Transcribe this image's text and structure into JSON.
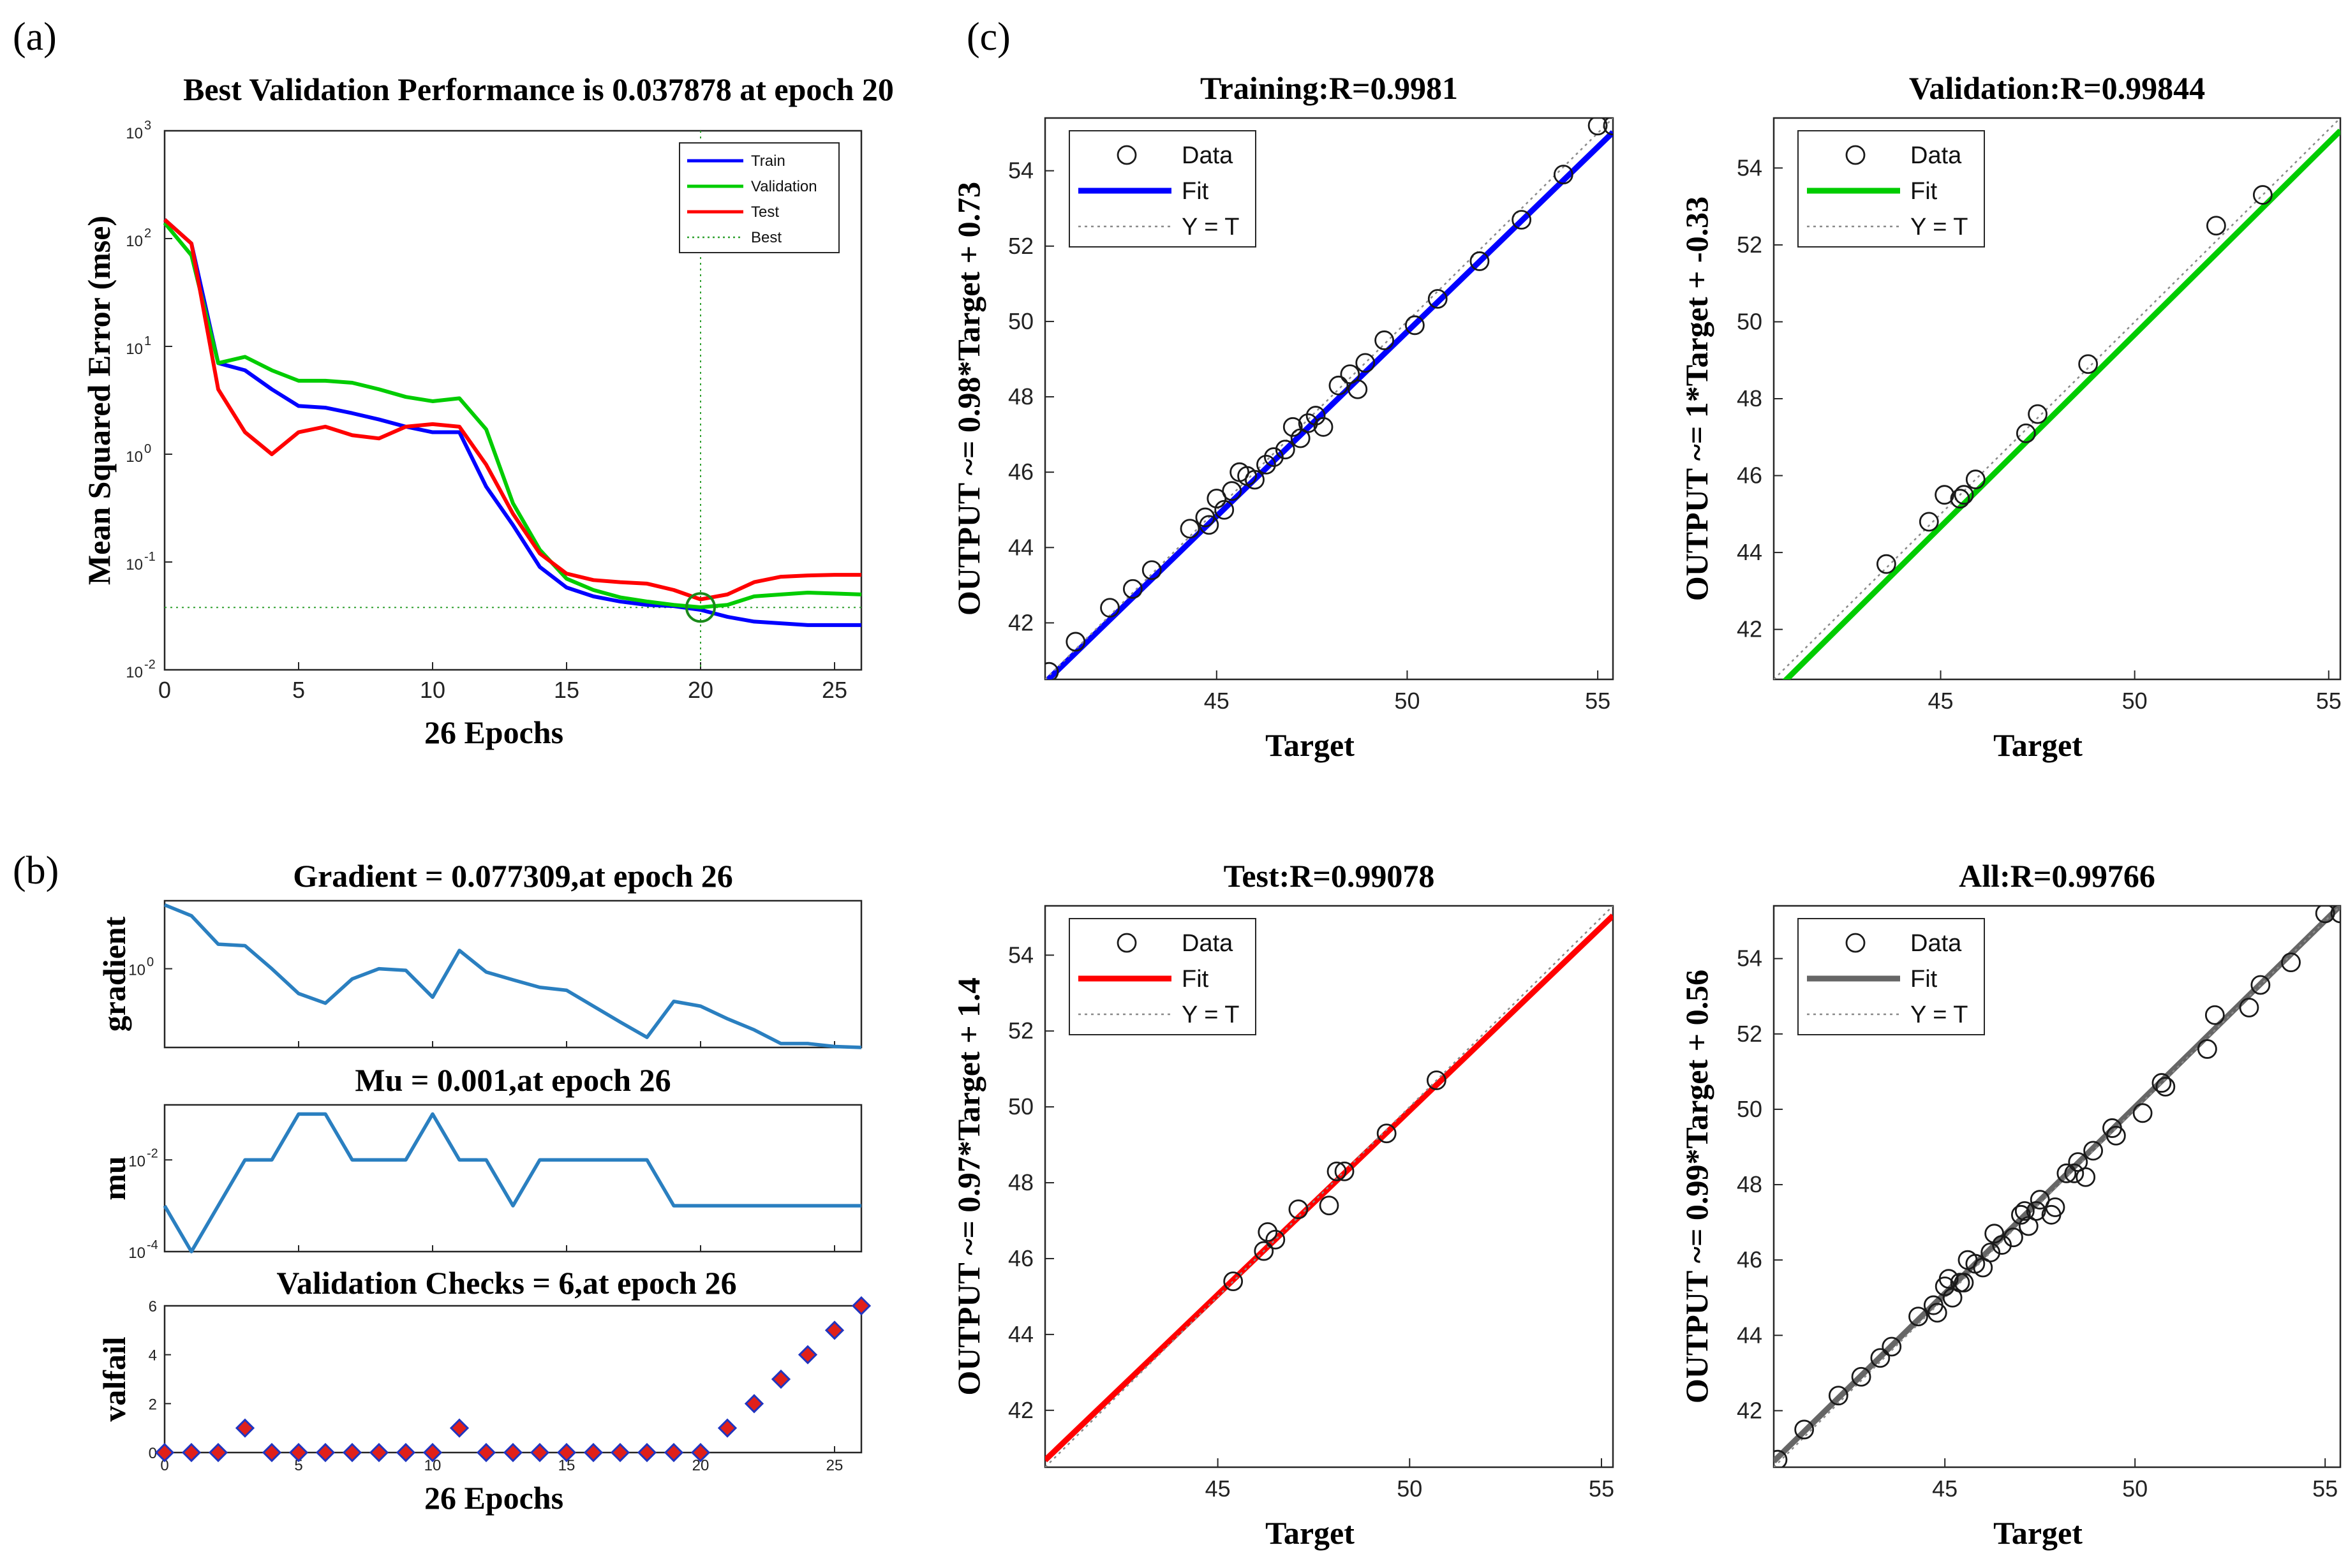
{
  "panels": {
    "a": "(a)",
    "b": "(b)",
    "c": "(c)"
  },
  "colors": {
    "train": "#0000ff",
    "validation": "#00cc00",
    "test": "#ff0000",
    "all": "#666666",
    "curve": "#2a7fc0",
    "marker_fill": "#e0201a",
    "marker_edge": "#2035c0"
  },
  "chart_data": [
    {
      "id": "performance",
      "type": "line",
      "title": "Best Validation Performance is 0.037878 at epoch 20",
      "xlabel": "26 Epochs",
      "ylabel": "Mean Squared Error (mse)",
      "yscale": "log",
      "xlim": [
        0,
        26
      ],
      "ylim_exp": [
        -2,
        3
      ],
      "xticks": [
        0,
        5,
        10,
        15,
        20,
        25
      ],
      "ytick_exponents": [
        -2,
        -1,
        0,
        1,
        2,
        3
      ],
      "ytick_base": "10",
      "best": {
        "epoch": 20,
        "value": 0.037878,
        "label": "Best"
      },
      "x": [
        0,
        1,
        2,
        3,
        4,
        5,
        6,
        7,
        8,
        9,
        10,
        11,
        12,
        13,
        14,
        15,
        16,
        17,
        18,
        19,
        20,
        21,
        22,
        23,
        24,
        25,
        26
      ],
      "series": [
        {
          "name": "Train",
          "color_key": "train",
          "values": [
            150,
            90,
            7,
            6,
            4,
            2.8,
            2.7,
            2.4,
            2.1,
            1.8,
            1.6,
            1.6,
            0.5,
            0.22,
            0.09,
            0.058,
            0.048,
            0.043,
            0.04,
            0.039,
            0.036,
            0.031,
            0.028,
            0.027,
            0.026,
            0.026,
            0.026
          ]
        },
        {
          "name": "Validation",
          "color_key": "validation",
          "values": [
            140,
            70,
            7,
            8,
            6,
            4.8,
            4.8,
            4.6,
            4,
            3.4,
            3.1,
            3.3,
            1.7,
            0.35,
            0.13,
            0.07,
            0.055,
            0.047,
            0.043,
            0.04,
            0.038,
            0.04,
            0.048,
            0.05,
            0.052,
            0.051,
            0.05
          ]
        },
        {
          "name": "Test",
          "color_key": "test",
          "values": [
            150,
            90,
            4,
            1.6,
            1,
            1.6,
            1.8,
            1.5,
            1.4,
            1.8,
            1.9,
            1.8,
            0.8,
            0.28,
            0.12,
            0.078,
            0.068,
            0.065,
            0.063,
            0.055,
            0.045,
            0.05,
            0.065,
            0.073,
            0.075,
            0.076,
            0.076
          ]
        }
      ]
    },
    {
      "id": "gradient",
      "type": "line",
      "title": "Gradient = 0.077309,at epoch 26",
      "ylabel": "gradient",
      "yscale": "log",
      "xlim": [
        0,
        26
      ],
      "ylim_exp": [
        -1.1,
        0.95
      ],
      "ytick_exponents": [
        0
      ],
      "ytick_base": "10",
      "x": [
        0,
        1,
        2,
        3,
        4,
        5,
        6,
        7,
        8,
        9,
        10,
        11,
        12,
        13,
        14,
        15,
        16,
        17,
        18,
        19,
        20,
        21,
        22,
        23,
        24,
        25,
        26
      ],
      "values": [
        7.8,
        5.5,
        2.2,
        2.1,
        1.0,
        0.45,
        0.33,
        0.72,
        1.0,
        0.95,
        0.4,
        1.8,
        0.9,
        0.7,
        0.55,
        0.5,
        0.3,
        0.18,
        0.11,
        0.35,
        0.3,
        0.2,
        0.14,
        0.09,
        0.09,
        0.082,
        0.077
      ]
    },
    {
      "id": "mu",
      "type": "line",
      "title": "Mu = 0.001,at epoch 26",
      "ylabel": "mu",
      "yscale": "log",
      "xlim": [
        0,
        26
      ],
      "ylim_exp": [
        -4,
        -0.8
      ],
      "ytick_exponents": [
        -4,
        -2
      ],
      "ytick_base": "10",
      "x": [
        0,
        1,
        2,
        3,
        4,
        5,
        6,
        7,
        8,
        9,
        10,
        11,
        12,
        13,
        14,
        15,
        16,
        17,
        18,
        19,
        20,
        21,
        22,
        23,
        24,
        25,
        26
      ],
      "values": [
        0.001,
        0.0001,
        0.001,
        0.01,
        0.01,
        0.1,
        0.1,
        0.01,
        0.01,
        0.01,
        0.1,
        0.01,
        0.01,
        0.001,
        0.01,
        0.01,
        0.01,
        0.01,
        0.01,
        0.001,
        0.001,
        0.001,
        0.001,
        0.001,
        0.001,
        0.001,
        0.001
      ]
    },
    {
      "id": "valfail",
      "type": "scatter",
      "title": "Validation Checks = 6,at epoch 26",
      "xlabel": "26 Epochs",
      "ylabel": "valfail",
      "xlim": [
        0,
        26
      ],
      "ylim": [
        0,
        6
      ],
      "xticks": [
        0,
        5,
        10,
        15,
        20,
        25
      ],
      "yticks": [
        0,
        2,
        4,
        6
      ],
      "x": [
        0,
        1,
        2,
        3,
        4,
        5,
        6,
        7,
        8,
        9,
        10,
        11,
        12,
        13,
        14,
        15,
        16,
        17,
        18,
        19,
        20,
        21,
        22,
        23,
        24,
        25,
        26
      ],
      "values": [
        0,
        0,
        0,
        1,
        0,
        0,
        0,
        0,
        0,
        0,
        0,
        1,
        0,
        0,
        0,
        0,
        0,
        0,
        0,
        0,
        0,
        1,
        2,
        3,
        4,
        5,
        6
      ]
    },
    {
      "id": "training",
      "type": "scatter",
      "title": "Training:R=0.9981",
      "xlabel": "Target",
      "ylabel": "OUTPUT ~= 0.98*Target + 0.73",
      "color_key": "train",
      "slope": 0.98,
      "intercept": 0.73,
      "xlim": [
        40.5,
        55.4
      ],
      "ylim": [
        40.5,
        55.4
      ],
      "xticks": [
        45,
        50,
        55
      ],
      "yticks": [
        42,
        44,
        46,
        48,
        50,
        52,
        54
      ],
      "legend": [
        "Data",
        "Fit",
        "Y = T"
      ],
      "points": [
        [
          40.6,
          40.7
        ],
        [
          41.3,
          41.5
        ],
        [
          42.2,
          42.4
        ],
        [
          42.8,
          42.9
        ],
        [
          43.3,
          43.4
        ],
        [
          44.3,
          44.5
        ],
        [
          44.7,
          44.8
        ],
        [
          44.8,
          44.6
        ],
        [
          45.0,
          45.3
        ],
        [
          45.2,
          45.0
        ],
        [
          45.4,
          45.5
        ],
        [
          45.6,
          46.0
        ],
        [
          45.8,
          45.9
        ],
        [
          46.0,
          45.8
        ],
        [
          46.3,
          46.2
        ],
        [
          46.5,
          46.4
        ],
        [
          46.8,
          46.6
        ],
        [
          47.0,
          47.2
        ],
        [
          47.2,
          46.9
        ],
        [
          47.4,
          47.3
        ],
        [
          47.6,
          47.5
        ],
        [
          47.8,
          47.2
        ],
        [
          48.2,
          48.3
        ],
        [
          48.5,
          48.6
        ],
        [
          48.7,
          48.2
        ],
        [
          48.9,
          48.9
        ],
        [
          49.4,
          49.5
        ],
        [
          50.2,
          49.9
        ],
        [
          50.8,
          50.6
        ],
        [
          51.9,
          51.6
        ],
        [
          53.0,
          52.7
        ],
        [
          54.1,
          53.9
        ],
        [
          55.0,
          55.2
        ],
        [
          55.4,
          55.2
        ]
      ]
    },
    {
      "id": "validation",
      "type": "scatter",
      "title": "Validation:R=0.99844",
      "xlabel": "Target",
      "ylabel": "OUTPUT ~= 1*Target + -0.33",
      "color_key": "validation",
      "slope": 1,
      "intercept": -0.33,
      "xlim": [
        40.7,
        55.3
      ],
      "ylim": [
        40.7,
        55.3
      ],
      "xticks": [
        45,
        50,
        55
      ],
      "yticks": [
        42,
        44,
        46,
        48,
        50,
        52,
        54
      ],
      "legend": [
        "Data",
        "Fit",
        "Y = T"
      ],
      "points": [
        [
          43.6,
          43.7
        ],
        [
          44.7,
          44.8
        ],
        [
          45.1,
          45.5
        ],
        [
          45.5,
          45.4
        ],
        [
          45.6,
          45.5
        ],
        [
          45.9,
          45.9
        ],
        [
          47.2,
          47.1
        ],
        [
          47.5,
          47.6
        ],
        [
          48.8,
          48.9
        ],
        [
          52.1,
          52.5
        ],
        [
          53.3,
          53.3
        ]
      ]
    },
    {
      "id": "test",
      "type": "scatter",
      "title": "Test:R=0.99078",
      "xlabel": "Target",
      "ylabel": "OUTPUT ~= 0.97*Target + 1.4",
      "color_key": "test",
      "slope": 0.97,
      "intercept": 1.4,
      "xlim": [
        40.5,
        55.3
      ],
      "ylim": [
        40.5,
        55.3
      ],
      "xticks": [
        45,
        50,
        55
      ],
      "yticks": [
        42,
        44,
        46,
        48,
        50,
        52,
        54
      ],
      "legend": [
        "Data",
        "Fit",
        "Y = T"
      ],
      "points": [
        [
          45.4,
          45.4
        ],
        [
          46.2,
          46.2
        ],
        [
          46.3,
          46.7
        ],
        [
          46.5,
          46.5
        ],
        [
          47.1,
          47.3
        ],
        [
          47.9,
          47.4
        ],
        [
          48.1,
          48.3
        ],
        [
          48.3,
          48.3
        ],
        [
          49.4,
          49.3
        ],
        [
          50.7,
          50.7
        ]
      ]
    },
    {
      "id": "all",
      "type": "scatter",
      "title": "All:R=0.99766",
      "xlabel": "Target",
      "ylabel": "OUTPUT ~= 0.99*Target + 0.56",
      "color_key": "all",
      "slope": 0.99,
      "intercept": 0.56,
      "xlim": [
        40.5,
        55.4
      ],
      "ylim": [
        40.5,
        55.4
      ],
      "xticks": [
        45,
        50,
        55
      ],
      "yticks": [
        42,
        44,
        46,
        48,
        50,
        52,
        54
      ],
      "legend": [
        "Data",
        "Fit",
        "Y = T"
      ],
      "points": [
        [
          40.6,
          40.7
        ],
        [
          41.3,
          41.5
        ],
        [
          42.2,
          42.4
        ],
        [
          42.8,
          42.9
        ],
        [
          43.3,
          43.4
        ],
        [
          43.6,
          43.7
        ],
        [
          44.3,
          44.5
        ],
        [
          44.7,
          44.8
        ],
        [
          44.8,
          44.6
        ],
        [
          45.0,
          45.3
        ],
        [
          45.1,
          45.5
        ],
        [
          45.2,
          45.0
        ],
        [
          45.4,
          45.4
        ],
        [
          45.5,
          45.4
        ],
        [
          45.6,
          46.0
        ],
        [
          45.8,
          45.9
        ],
        [
          46.0,
          45.8
        ],
        [
          46.2,
          46.2
        ],
        [
          46.3,
          46.7
        ],
        [
          46.5,
          46.4
        ],
        [
          46.8,
          46.6
        ],
        [
          47.0,
          47.2
        ],
        [
          47.1,
          47.3
        ],
        [
          47.2,
          46.9
        ],
        [
          47.4,
          47.3
        ],
        [
          47.5,
          47.6
        ],
        [
          47.8,
          47.2
        ],
        [
          47.9,
          47.4
        ],
        [
          48.2,
          48.3
        ],
        [
          48.4,
          48.3
        ],
        [
          48.5,
          48.6
        ],
        [
          48.7,
          48.2
        ],
        [
          48.9,
          48.9
        ],
        [
          49.4,
          49.5
        ],
        [
          49.5,
          49.3
        ],
        [
          50.2,
          49.9
        ],
        [
          50.7,
          50.7
        ],
        [
          50.8,
          50.6
        ],
        [
          51.9,
          51.6
        ],
        [
          52.1,
          52.5
        ],
        [
          53.0,
          52.7
        ],
        [
          53.3,
          53.3
        ],
        [
          54.1,
          53.9
        ],
        [
          55.0,
          55.2
        ],
        [
          55.4,
          55.2
        ]
      ]
    }
  ]
}
